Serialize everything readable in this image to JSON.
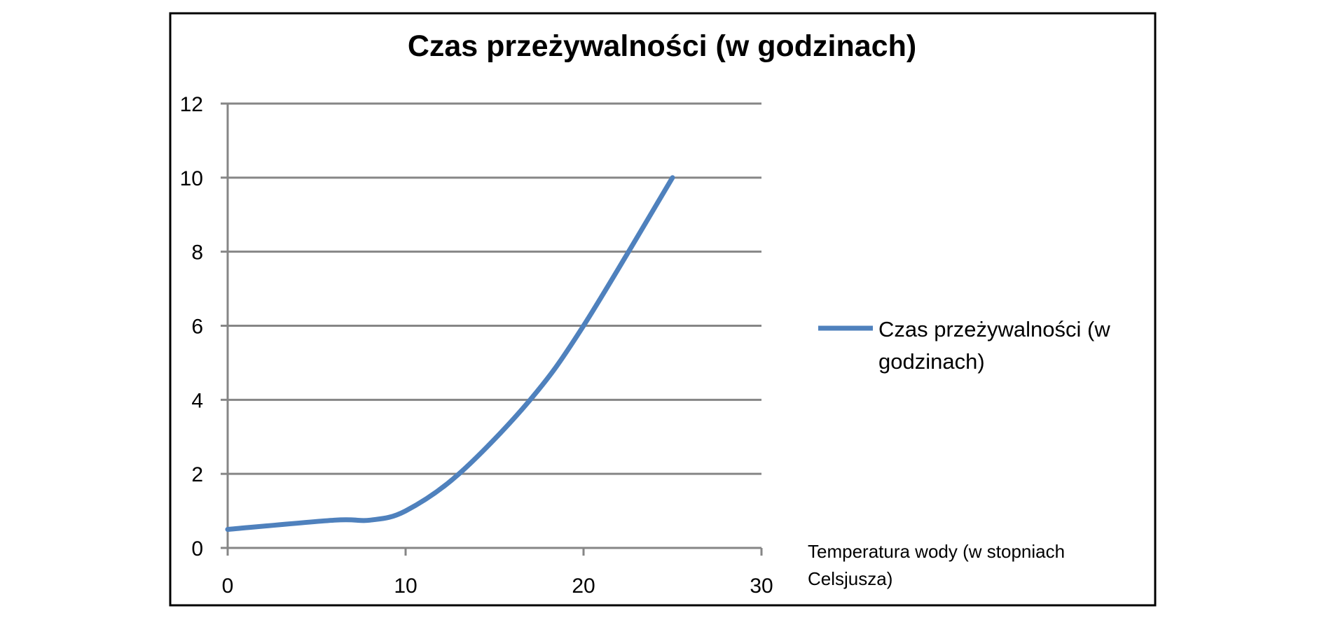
{
  "chart_data": {
    "type": "line",
    "title": "Czas przeżywalności (w godzinach)",
    "xlabel_lines": [
      "Temperatura wody (w stopniach",
      "Celsjusza)"
    ],
    "ylabel": "",
    "x_ticks": [
      "0",
      "10",
      "20",
      "30"
    ],
    "y_ticks": [
      "0",
      "2",
      "4",
      "6",
      "8",
      "10",
      "12"
    ],
    "xlim": [
      0,
      30
    ],
    "ylim": [
      0,
      12
    ],
    "grid": "horizontal",
    "legend_position": "right",
    "legend_lines": [
      "Czas przeżywalności (w",
      "godzinach)"
    ],
    "series": [
      {
        "name": "Czas przeżywalności (w godzinach)",
        "color": "#4f81bd",
        "smooth": true,
        "points": [
          {
            "x": 0,
            "y": 0.5
          },
          {
            "x": 6,
            "y": 0.75
          },
          {
            "x": 8,
            "y": 0.75
          },
          {
            "x": 10,
            "y": 1
          },
          {
            "x": 13,
            "y": 2
          },
          {
            "x": 17,
            "y": 4
          },
          {
            "x": 20,
            "y": 6
          },
          {
            "x": 25,
            "y": 10
          }
        ]
      }
    ]
  }
}
